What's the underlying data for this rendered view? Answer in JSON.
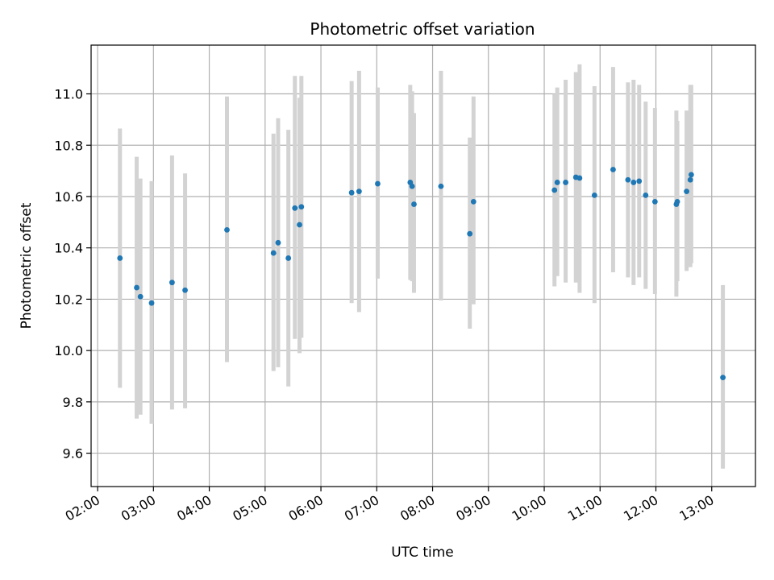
{
  "chart_data": {
    "type": "scatter",
    "title": "Photometric offset variation",
    "xlabel": "UTC time",
    "ylabel": "Photometric offset",
    "x_ticks": [
      "02:00",
      "03:00",
      "04:00",
      "05:00",
      "06:00",
      "07:00",
      "08:00",
      "09:00",
      "10:00",
      "11:00",
      "12:00",
      "13:00"
    ],
    "y_ticks": [
      "9.6",
      "9.8",
      "10.0",
      "10.2",
      "10.4",
      "10.6",
      "10.8",
      "11.0"
    ],
    "xlim": [
      "01:53",
      "13:47"
    ],
    "ylim": [
      9.47,
      11.19
    ],
    "grid": true,
    "marker_color": "#1f77b4",
    "errorbar_color": "#d3d3d3",
    "points": [
      {
        "x": "02:24",
        "y": 10.36,
        "lo": 9.855,
        "hi": 10.865
      },
      {
        "x": "02:42",
        "y": 10.245,
        "lo": 9.735,
        "hi": 10.755
      },
      {
        "x": "02:46",
        "y": 10.21,
        "lo": 9.75,
        "hi": 10.67
      },
      {
        "x": "02:58",
        "y": 10.185,
        "lo": 9.715,
        "hi": 10.66
      },
      {
        "x": "03:20",
        "y": 10.265,
        "lo": 9.77,
        "hi": 10.76
      },
      {
        "x": "03:34",
        "y": 10.235,
        "lo": 9.775,
        "hi": 10.69
      },
      {
        "x": "04:19",
        "y": 10.47,
        "lo": 9.955,
        "hi": 10.99
      },
      {
        "x": "05:09",
        "y": 10.38,
        "lo": 9.92,
        "hi": 10.845
      },
      {
        "x": "05:14",
        "y": 10.42,
        "lo": 9.935,
        "hi": 10.905
      },
      {
        "x": "05:25",
        "y": 10.36,
        "lo": 9.86,
        "hi": 10.86
      },
      {
        "x": "05:32",
        "y": 10.555,
        "lo": 10.045,
        "hi": 11.07
      },
      {
        "x": "05:37",
        "y": 10.49,
        "lo": 9.99,
        "hi": 10.985
      },
      {
        "x": "05:39",
        "y": 10.56,
        "lo": 10.05,
        "hi": 11.07
      },
      {
        "x": "06:33",
        "y": 10.615,
        "lo": 10.185,
        "hi": 11.05
      },
      {
        "x": "06:41",
        "y": 10.62,
        "lo": 10.15,
        "hi": 11.09
      },
      {
        "x": "07:01",
        "y": 10.65,
        "lo": 10.28,
        "hi": 11.025
      },
      {
        "x": "07:36",
        "y": 10.655,
        "lo": 10.275,
        "hi": 11.035
      },
      {
        "x": "07:38",
        "y": 10.64,
        "lo": 10.27,
        "hi": 11.01
      },
      {
        "x": "07:40",
        "y": 10.57,
        "lo": 10.225,
        "hi": 10.925
      },
      {
        "x": "08:09",
        "y": 10.64,
        "lo": 10.195,
        "hi": 11.09
      },
      {
        "x": "08:40",
        "y": 10.455,
        "lo": 10.085,
        "hi": 10.83
      },
      {
        "x": "08:44",
        "y": 10.58,
        "lo": 10.18,
        "hi": 10.99
      },
      {
        "x": "10:11",
        "y": 10.625,
        "lo": 10.25,
        "hi": 11.0
      },
      {
        "x": "10:14",
        "y": 10.655,
        "lo": 10.29,
        "hi": 11.025
      },
      {
        "x": "10:23",
        "y": 10.655,
        "lo": 10.265,
        "hi": 11.055
      },
      {
        "x": "10:34",
        "y": 10.675,
        "lo": 10.265,
        "hi": 11.085
      },
      {
        "x": "10:38",
        "y": 10.672,
        "lo": 10.225,
        "hi": 11.115
      },
      {
        "x": "10:54",
        "y": 10.605,
        "lo": 10.185,
        "hi": 11.03
      },
      {
        "x": "11:14",
        "y": 10.705,
        "lo": 10.305,
        "hi": 11.105
      },
      {
        "x": "11:30",
        "y": 10.665,
        "lo": 10.285,
        "hi": 11.045
      },
      {
        "x": "11:36",
        "y": 10.655,
        "lo": 10.255,
        "hi": 11.055
      },
      {
        "x": "11:42",
        "y": 10.66,
        "lo": 10.285,
        "hi": 11.035
      },
      {
        "x": "11:49",
        "y": 10.605,
        "lo": 10.24,
        "hi": 10.97
      },
      {
        "x": "11:59",
        "y": 10.58,
        "lo": 10.22,
        "hi": 10.945
      },
      {
        "x": "12:22",
        "y": 10.57,
        "lo": 10.21,
        "hi": 10.935
      },
      {
        "x": "12:23",
        "y": 10.58,
        "lo": 10.27,
        "hi": 10.895
      },
      {
        "x": "12:33",
        "y": 10.62,
        "lo": 10.31,
        "hi": 10.935
      },
      {
        "x": "12:37",
        "y": 10.665,
        "lo": 10.325,
        "hi": 11.035
      },
      {
        "x": "12:38",
        "y": 10.685,
        "lo": 10.34,
        "hi": 11.035
      },
      {
        "x": "13:12",
        "y": 9.895,
        "lo": 9.54,
        "hi": 10.255
      }
    ]
  }
}
